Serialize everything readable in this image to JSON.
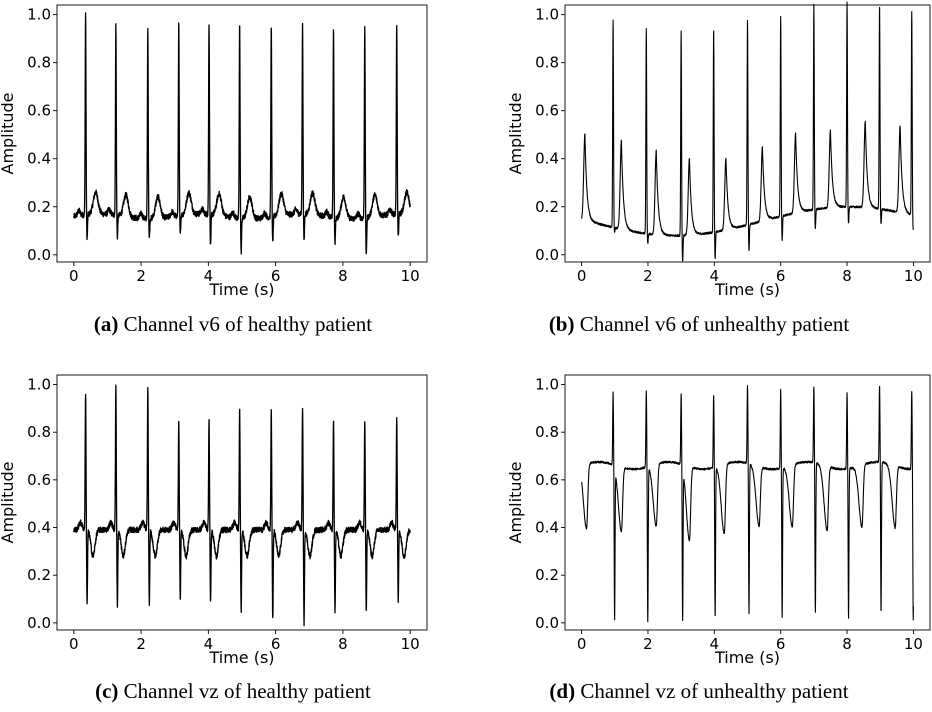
{
  "chart_data": [
    {
      "type": "line",
      "caption_label": "(a)",
      "caption_text": "Channel v6 of healthy patient",
      "xlabel": "Time (s)",
      "ylabel": "Amplitude",
      "xlim": [
        -0.5,
        10.5
      ],
      "ylim": [
        -0.03,
        1.04
      ],
      "xticks": [
        "0",
        "2",
        "4",
        "6",
        "8",
        "10"
      ],
      "yticks": [
        "0.0",
        "0.2",
        "0.4",
        "0.6",
        "0.8",
        "1.0"
      ],
      "grid": false,
      "baseline": 0.16,
      "noise": 0.012,
      "beats": [
        {
          "t": 0.35,
          "r": 1.0,
          "s": 0.06
        },
        {
          "t": 1.25,
          "r": 0.95,
          "s": 0.07
        },
        {
          "t": 2.2,
          "r": 0.95,
          "s": 0.08
        },
        {
          "t": 3.12,
          "r": 0.96,
          "s": 0.08
        },
        {
          "t": 4.02,
          "r": 0.965,
          "s": 0.03
        },
        {
          "t": 4.93,
          "r": 0.97,
          "s": 0.02
        },
        {
          "t": 5.87,
          "r": 0.96,
          "s": 0.05
        },
        {
          "t": 6.8,
          "r": 0.95,
          "s": 0.05
        },
        {
          "t": 7.72,
          "r": 0.95,
          "s": 0.05
        },
        {
          "t": 8.65,
          "r": 0.96,
          "s": 0.0
        },
        {
          "t": 9.6,
          "r": 0.955,
          "s": 0.06
        }
      ],
      "twave": 0.09
    },
    {
      "type": "line",
      "caption_label": "(b)",
      "caption_text": "Channel v6 of unhealthy patient",
      "xlabel": "Time (s)",
      "ylabel": "Amplitude",
      "xlim": [
        -0.5,
        10.5
      ],
      "ylim": [
        -0.03,
        1.04
      ],
      "xticks": [
        "0",
        "2",
        "4",
        "6",
        "8",
        "10"
      ],
      "yticks": [
        "0.0",
        "0.2",
        "0.4",
        "0.6",
        "0.8",
        "1.0"
      ],
      "grid": false,
      "baseline": 0.14,
      "noise": 0.004,
      "beats": [
        {
          "t": 0.95,
          "r": 1.0,
          "s": 0.12
        },
        {
          "t": 1.95,
          "r": 0.99,
          "s": 0.1
        },
        {
          "t": 3.0,
          "r": 0.99,
          "s": 0.03
        },
        {
          "t": 3.98,
          "r": 0.99,
          "s": 0.03
        },
        {
          "t": 5.0,
          "r": 0.99,
          "s": 0.03
        },
        {
          "t": 6.0,
          "r": 0.975,
          "s": 0.04
        },
        {
          "t": 7.0,
          "r": 0.99,
          "s": 0.06
        },
        {
          "t": 8.0,
          "r": 0.99,
          "s": 0.07
        },
        {
          "t": 8.98,
          "r": 0.985,
          "s": 0.08
        },
        {
          "t": 9.95,
          "r": 0.99,
          "s": 0.08
        }
      ],
      "twaves": [
        {
          "t": 0.1,
          "h": 0.5
        },
        {
          "t": 1.2,
          "h": 0.51
        },
        {
          "t": 2.25,
          "h": 0.49
        },
        {
          "t": 3.25,
          "h": 0.46
        },
        {
          "t": 4.35,
          "h": 0.44
        },
        {
          "t": 5.45,
          "h": 0.45
        },
        {
          "t": 6.45,
          "h": 0.47
        },
        {
          "t": 7.5,
          "h": 0.46
        },
        {
          "t": 8.55,
          "h": 0.5
        },
        {
          "t": 9.6,
          "h": 0.5
        }
      ]
    },
    {
      "type": "line",
      "caption_label": "(c)",
      "caption_text": "Channel vz of healthy patient",
      "xlabel": "Time (s)",
      "ylabel": "Amplitude",
      "xlim": [
        -0.5,
        10.5
      ],
      "ylim": [
        -0.03,
        1.04
      ],
      "xticks": [
        "0",
        "2",
        "4",
        "6",
        "8",
        "10"
      ],
      "yticks": [
        "0.0",
        "0.2",
        "0.4",
        "0.6",
        "0.8",
        "1.0"
      ],
      "grid": false,
      "baseline": 0.39,
      "noise": 0.012,
      "beats": [
        {
          "t": 0.35,
          "r": 0.97,
          "s": 0.08
        },
        {
          "t": 1.25,
          "r": 1.0,
          "s": 0.07
        },
        {
          "t": 2.2,
          "r": 0.99,
          "s": 0.08
        },
        {
          "t": 3.12,
          "r": 0.85,
          "s": 0.1
        },
        {
          "t": 4.02,
          "r": 0.86,
          "s": 0.09
        },
        {
          "t": 4.93,
          "r": 0.9,
          "s": 0.05
        },
        {
          "t": 5.87,
          "r": 0.89,
          "s": 0.01
        },
        {
          "t": 6.8,
          "r": 0.91,
          "s": 0.0
        },
        {
          "t": 7.72,
          "r": 0.85,
          "s": 0.05
        },
        {
          "t": 8.65,
          "r": 0.85,
          "s": 0.05
        },
        {
          "t": 9.6,
          "r": 0.87,
          "s": 0.09
        }
      ],
      "dip": 0.28
    },
    {
      "type": "line",
      "caption_label": "(d)",
      "caption_text": "Channel vz of unhealthy patient",
      "xlabel": "Time (s)",
      "ylabel": "Amplitude",
      "xlim": [
        -0.5,
        10.5
      ],
      "ylim": [
        -0.03,
        1.04
      ],
      "xticks": [
        "0",
        "2",
        "4",
        "6",
        "8",
        "10"
      ],
      "yticks": [
        "0.0",
        "0.2",
        "0.4",
        "0.6",
        "0.8",
        "1.0"
      ],
      "grid": false,
      "baseline": 0.66,
      "noise": 0.004,
      "beats": [
        {
          "t": 0.95,
          "r": 0.97,
          "s": 0.03
        },
        {
          "t": 1.95,
          "r": 0.98,
          "s": 0.01
        },
        {
          "t": 3.0,
          "r": 0.96,
          "s": 0.03
        },
        {
          "t": 3.98,
          "r": 0.97,
          "s": 0.03
        },
        {
          "t": 5.0,
          "r": 0.99,
          "s": 0.03
        },
        {
          "t": 6.0,
          "r": 0.99,
          "s": 0.03
        },
        {
          "t": 7.0,
          "r": 0.98,
          "s": 0.03
        },
        {
          "t": 8.0,
          "r": 0.98,
          "s": 0.03
        },
        {
          "t": 8.98,
          "r": 0.98,
          "s": 0.03
        },
        {
          "t": 9.95,
          "r": 0.99,
          "s": 0.03
        }
      ],
      "dips": [
        {
          "t": 0.15,
          "v": 0.39
        },
        {
          "t": 1.2,
          "v": 0.39
        },
        {
          "t": 2.25,
          "v": 0.4
        },
        {
          "t": 3.25,
          "v": 0.35
        },
        {
          "t": 4.3,
          "v": 0.37
        },
        {
          "t": 5.35,
          "v": 0.41
        },
        {
          "t": 6.35,
          "v": 0.4
        },
        {
          "t": 7.4,
          "v": 0.39
        },
        {
          "t": 8.45,
          "v": 0.4
        },
        {
          "t": 9.45,
          "v": 0.4
        }
      ]
    }
  ]
}
